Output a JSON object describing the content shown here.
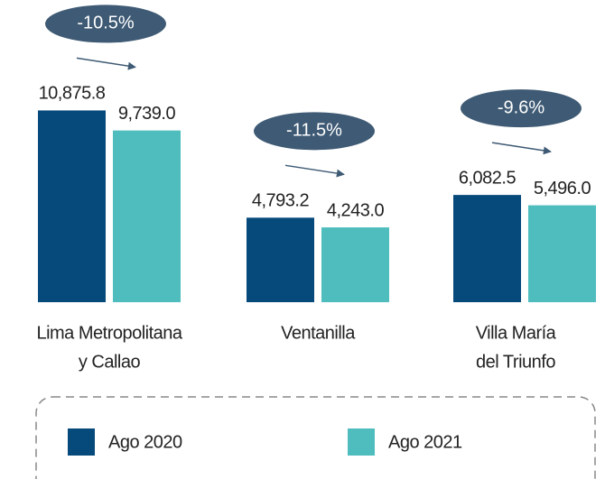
{
  "chart_data": {
    "type": "bar",
    "categories": [
      [
        "Lima Metropolitana",
        "y Callao"
      ],
      [
        "Ventanilla"
      ],
      [
        "Villa María",
        "del Triunfo"
      ]
    ],
    "series": [
      {
        "name": "Ago 2020",
        "color": "#064a7c",
        "values": [
          10875.8,
          4793.2,
          6082.5
        ],
        "value_labels": [
          "10,875.8",
          "4,793.2",
          "6,082.5"
        ]
      },
      {
        "name": "Ago 2021",
        "color": "#4fbdbe",
        "values": [
          9739.0,
          4243.0,
          5496.0
        ],
        "value_labels": [
          "9,739.0",
          "4,243.0",
          "5,496.0"
        ]
      }
    ],
    "annotations": [
      "-10.5%",
      "-11.5%",
      "-9.6%"
    ],
    "annotation_color": "#3e5a74",
    "ylim": [
      0,
      11000
    ]
  }
}
